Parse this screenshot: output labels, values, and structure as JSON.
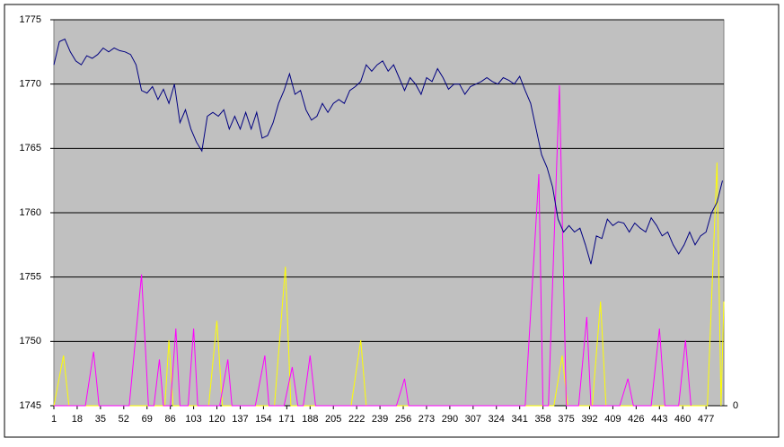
{
  "chart_data": {
    "type": "line",
    "xlim": [
      1,
      490
    ],
    "xticks": [
      1,
      18,
      35,
      52,
      69,
      86,
      103,
      120,
      137,
      154,
      171,
      188,
      205,
      222,
      239,
      256,
      273,
      290,
      307,
      324,
      341,
      358,
      375,
      392,
      409,
      426,
      443,
      460,
      477
    ],
    "ylim": [
      1745,
      1775
    ],
    "yticks": [
      1745,
      1750,
      1755,
      1760,
      1765,
      1770,
      1775
    ],
    "y2lim": [
      0,
      100
    ],
    "y2ticks": [
      0
    ],
    "grid": true,
    "series": [
      {
        "color": "#000080",
        "x": [
          1,
          5,
          9,
          13,
          17,
          21,
          25,
          29,
          33,
          37,
          41,
          45,
          49,
          53,
          57,
          61,
          65,
          69,
          73,
          77,
          81,
          85,
          89,
          93,
          97,
          101,
          105,
          109,
          113,
          117,
          121,
          125,
          129,
          133,
          137,
          141,
          145,
          149,
          153,
          157,
          161,
          165,
          169,
          173,
          177,
          181,
          185,
          189,
          193,
          197,
          201,
          205,
          209,
          213,
          217,
          221,
          225,
          229,
          233,
          237,
          241,
          245,
          249,
          253,
          257,
          261,
          265,
          269,
          273,
          277,
          281,
          285,
          289,
          293,
          297,
          301,
          305,
          309,
          313,
          317,
          321,
          325,
          329,
          333,
          337,
          341,
          345,
          349,
          353,
          357,
          361,
          365,
          369,
          373,
          377,
          381,
          385,
          389,
          393,
          397,
          401,
          405,
          409,
          413,
          417,
          421,
          425,
          429,
          433,
          437,
          441,
          445,
          449,
          453,
          457,
          461,
          465,
          469,
          473,
          477,
          481,
          485,
          489
        ],
        "values": [
          1771.5,
          1773.3,
          1773.5,
          1772.5,
          1771.8,
          1771.5,
          1772.2,
          1772,
          1772.3,
          1772.8,
          1772.5,
          1772.8,
          1772.6,
          1772.5,
          1772.3,
          1771.5,
          1769.5,
          1769.3,
          1769.8,
          1768.8,
          1769.6,
          1768.5,
          1770,
          1767,
          1768,
          1766.5,
          1765.5,
          1764.8,
          1767.5,
          1767.8,
          1767.5,
          1768,
          1766.5,
          1767.5,
          1766.5,
          1767.8,
          1766.5,
          1767.8,
          1765.8,
          1766,
          1767,
          1768.5,
          1769.5,
          1770.8,
          1769.2,
          1769.5,
          1768,
          1767.2,
          1767.5,
          1768.5,
          1767.8,
          1768.5,
          1768.8,
          1768.5,
          1769.5,
          1769.8,
          1770.2,
          1771.5,
          1771,
          1771.5,
          1771.8,
          1771,
          1771.5,
          1770.5,
          1769.5,
          1770.5,
          1770,
          1769.2,
          1770.5,
          1770.2,
          1771.2,
          1770.5,
          1769.6,
          1770,
          1770,
          1769.2,
          1769.8,
          1770,
          1770.2,
          1770.5,
          1770.2,
          1770,
          1770.5,
          1770.3,
          1770,
          1770.6,
          1769.5,
          1768.5,
          1766.5,
          1764.5,
          1763.5,
          1762,
          1759.5,
          1758.5,
          1759,
          1758.5,
          1758.8,
          1757.5,
          1756,
          1758.2,
          1758,
          1759.5,
          1759,
          1759.3,
          1759.2,
          1758.5,
          1759.2,
          1758.8,
          1758.5,
          1759.6,
          1759,
          1758.2,
          1758.5,
          1757.5,
          1756.8,
          1757.5,
          1758.5,
          1757.5,
          1758.2,
          1758.5,
          1760,
          1760.8,
          1762.5
        ]
      },
      {
        "color": "#ff00ff",
        "axis": "y2",
        "x": [
          1,
          24,
          30,
          34,
          56,
          65,
          70,
          74,
          78,
          81,
          86,
          90,
          93,
          99,
          103,
          106,
          122,
          128,
          131,
          148,
          155,
          158,
          169,
          175,
          179,
          183,
          188,
          192,
          251,
          257,
          260,
          345,
          355,
          358,
          362,
          370,
          375,
          384,
          390,
          393,
          414,
          420,
          424,
          437,
          443,
          447,
          457,
          462,
          466
        ],
        "values": [
          0,
          0,
          14,
          0,
          0,
          34,
          0,
          0,
          12,
          0,
          0,
          20,
          0,
          0,
          20,
          0,
          0,
          12,
          0,
          0,
          13,
          0,
          0,
          10,
          0,
          0,
          13,
          0,
          0,
          7,
          0,
          0,
          60,
          0,
          0,
          83,
          0,
          0,
          23,
          0,
          0,
          7,
          0,
          0,
          20,
          0,
          0,
          17,
          0
        ]
      },
      {
        "color": "#ffff00",
        "axis": "y2",
        "x": [
          1,
          8,
          12,
          82,
          85,
          88,
          114,
          120,
          124,
          162,
          170,
          174,
          218,
          225,
          229,
          366,
          372,
          376,
          394,
          400,
          404,
          478,
          485,
          488,
          490
        ],
        "values": [
          0,
          13,
          0,
          0,
          17,
          0,
          0,
          22,
          0,
          0,
          36,
          0,
          0,
          17,
          0,
          0,
          13,
          0,
          0,
          27,
          0,
          0,
          63,
          0,
          27
        ]
      }
    ]
  }
}
